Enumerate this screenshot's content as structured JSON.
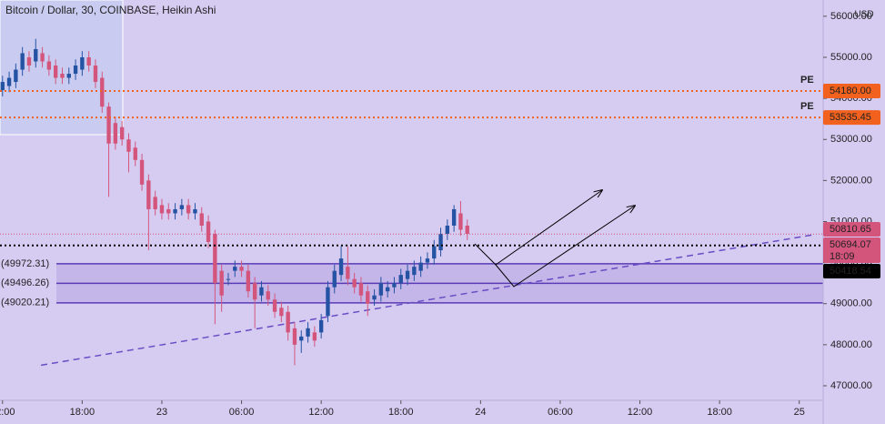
{
  "chart_data": {
    "type": "candlestick",
    "title": "Bitcoin / Dollar, 30, COINBASE, Heikin Ashi",
    "currency": "USD",
    "x": [
      12,
      12.5,
      13,
      13.5,
      14,
      14.5,
      15,
      15.5,
      16,
      16.5,
      17,
      17.5,
      18,
      18.5,
      19,
      19.5,
      20,
      20.5,
      21,
      21.5,
      22,
      22.5,
      23,
      23.5,
      24,
      24.5,
      25,
      25.5,
      26,
      26.5,
      27,
      27.5,
      28,
      28.5,
      29,
      29.5,
      30,
      30.5,
      31,
      31.5,
      32,
      32.5,
      33,
      33.5,
      34,
      34.5,
      35,
      35.5,
      36,
      36.5,
      37,
      37.5,
      38,
      38.5,
      39,
      39.5,
      40,
      40.5,
      41,
      41.5,
      42,
      42.5,
      43,
      43.5,
      44,
      44.5,
      45,
      45.5,
      46,
      46.5,
      47
    ],
    "open": [
      54200,
      54300,
      54400,
      54700,
      55000,
      54900,
      55100,
      54900,
      54800,
      54600,
      54500,
      54600,
      54700,
      55000,
      54800,
      54500,
      53800,
      53400,
      53300,
      53000,
      52800,
      52500,
      52000,
      51600,
      51400,
      51300,
      51200,
      51300,
      51400,
      51200,
      51200,
      51000,
      50700,
      49800,
      49600,
      49800,
      49900,
      49800,
      49500,
      49200,
      49300,
      49100,
      48900,
      48800,
      48400,
      48100,
      48200,
      48300,
      48300,
      48700,
      49400,
      49700,
      49900,
      49600,
      49500,
      49300,
      49100,
      49200,
      49300,
      49400,
      49500,
      49600,
      49700,
      49800,
      50000,
      50100,
      50300,
      50700,
      50900,
      51200,
      50900
    ],
    "high": [
      54550,
      54650,
      54850,
      55250,
      55150,
      55450,
      55250,
      55050,
      54950,
      54750,
      54750,
      54950,
      55150,
      55150,
      54950,
      54650,
      53900,
      53550,
      53450,
      53150,
      52950,
      52650,
      52150,
      51750,
      51550,
      51450,
      51450,
      51550,
      51550,
      51450,
      51350,
      51150,
      50800,
      49950,
      49750,
      50050,
      50050,
      49950,
      49650,
      49550,
      49450,
      49250,
      49050,
      48950,
      48550,
      48350,
      48550,
      48450,
      48750,
      49550,
      49950,
      50400,
      50400,
      49750,
      49650,
      49450,
      49350,
      49650,
      49550,
      49650,
      49850,
      49950,
      50050,
      50150,
      50250,
      50550,
      50850,
      51050,
      51400,
      51500,
      51050
    ],
    "low": [
      54050,
      54150,
      54250,
      54550,
      54650,
      54750,
      54750,
      54550,
      54350,
      54350,
      54350,
      54450,
      54550,
      54650,
      54250,
      53650,
      51600,
      52750,
      52850,
      52200,
      52350,
      51750,
      50300,
      51150,
      51050,
      51050,
      51050,
      51150,
      51050,
      51050,
      50750,
      50350,
      48500,
      48800,
      49450,
      49650,
      49650,
      49150,
      48400,
      49050,
      48950,
      48650,
      48550,
      48100,
      47500,
      47800,
      48050,
      47950,
      48150,
      48550,
      49250,
      49550,
      49450,
      49250,
      49050,
      48700,
      48950,
      49050,
      49150,
      49250,
      49350,
      49450,
      49550,
      49650,
      49850,
      49950,
      50150,
      50550,
      50750,
      50650,
      50550
    ],
    "close": [
      54400,
      54500,
      54700,
      55100,
      54800,
      55200,
      54900,
      54700,
      54500,
      54500,
      54600,
      54800,
      55000,
      54800,
      54400,
      53800,
      52900,
      52900,
      53000,
      52700,
      52500,
      51900,
      51300,
      51300,
      51200,
      51200,
      51300,
      51400,
      51200,
      51300,
      50900,
      50500,
      49500,
      49200,
      49600,
      49900,
      49800,
      49300,
      49100,
      49400,
      49100,
      48800,
      48700,
      48300,
      48000,
      48200,
      48400,
      48100,
      48600,
      49400,
      49800,
      50100,
      49600,
      49400,
      49200,
      49000,
      49200,
      49500,
      49400,
      49500,
      49700,
      49800,
      49900,
      50000,
      50100,
      50400,
      50700,
      50900,
      51300,
      50800,
      50700
    ],
    "up_color": "#2553a3",
    "down_color": "#d4557c",
    "xlim": [
      11.81,
      73.8
    ],
    "xticks": [
      {
        "value": 12,
        "label": "12:00"
      },
      {
        "value": 18,
        "label": "18:00"
      },
      {
        "value": 24,
        "label": "23"
      },
      {
        "value": 30,
        "label": "06:00"
      },
      {
        "value": 36,
        "label": "12:00"
      },
      {
        "value": 42,
        "label": "18:00"
      },
      {
        "value": 48,
        "label": "24"
      },
      {
        "value": 54,
        "label": "06:00"
      },
      {
        "value": 60,
        "label": "12:00"
      },
      {
        "value": 66,
        "label": "18:00"
      },
      {
        "value": 72,
        "label": "25"
      }
    ],
    "ylim": [
      46645,
      56396
    ],
    "yticks": [
      {
        "value": 47000,
        "label": "47000.00"
      },
      {
        "value": 48000,
        "label": "48000.00"
      },
      {
        "value": 49000,
        "label": "49000.00"
      },
      {
        "value": 50000,
        "label": "50000.00"
      },
      {
        "value": 51000,
        "label": "51000.00"
      },
      {
        "value": 52000,
        "label": "52000.00"
      },
      {
        "value": 53000,
        "label": "53000.00"
      },
      {
        "value": 54000,
        "label": "54000.00"
      },
      {
        "value": 55000,
        "label": "55000.00"
      },
      {
        "value": 56000,
        "label": "56000.00"
      }
    ],
    "levels": [
      {
        "name": "PE",
        "value": 54180,
        "label": "54180.00",
        "color": "#f2611d"
      },
      {
        "name": "PE",
        "value": 53535.45,
        "label": "53535.45",
        "color": "#f2611d"
      },
      {
        "value": 50418.54,
        "label": "50418.54",
        "color": "#000000"
      }
    ],
    "zone": {
      "values": [
        49972.31,
        49496.26,
        49020.21
      ],
      "value_labels": [
        "(49972.31)",
        "(49496.26)",
        "(49020.21)"
      ],
      "color": "#5b3bb5"
    },
    "last_price": {
      "values": [
        50810.65,
        50694.07
      ],
      "value_labels": [
        "50810.65",
        "50694.07"
      ],
      "countdown": "18:09",
      "color": "#d4557c"
    },
    "trendline": {
      "x": [
        14.9,
        73.1
      ],
      "y": [
        47500,
        50680
      ],
      "color": "#6a4cc4"
    }
  }
}
